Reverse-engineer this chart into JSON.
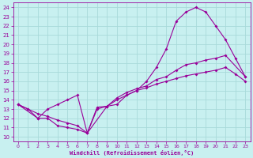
{
  "xlabel": "Windchill (Refroidissement éolien,°C)",
  "bg_color": "#c8f0f0",
  "grid_color": "#a8dada",
  "line_color": "#990099",
  "xlim": [
    -0.5,
    23.5
  ],
  "ylim": [
    9.5,
    24.5
  ],
  "xticks": [
    0,
    1,
    2,
    3,
    4,
    5,
    6,
    7,
    8,
    9,
    10,
    11,
    12,
    13,
    14,
    15,
    16,
    17,
    18,
    19,
    20,
    21,
    22,
    23
  ],
  "yticks": [
    10,
    11,
    12,
    13,
    14,
    15,
    16,
    17,
    18,
    19,
    20,
    21,
    22,
    23,
    24
  ],
  "line1_x": [
    0,
    1,
    2,
    3,
    4,
    5,
    6,
    7,
    8,
    9,
    10,
    11,
    12,
    13,
    14,
    15,
    16,
    17,
    18,
    19,
    20,
    21,
    22,
    23
  ],
  "line1_y": [
    13.5,
    13.0,
    12.0,
    12.0,
    11.2,
    11.0,
    10.8,
    10.4,
    13.2,
    13.3,
    13.5,
    14.5,
    15.0,
    16.0,
    17.5,
    19.5,
    22.5,
    23.5,
    24.0,
    23.5,
    22.0,
    20.5,
    18.5,
    16.5
  ],
  "line2_x": [
    0,
    2,
    3,
    4,
    5,
    6,
    7,
    9,
    10,
    11,
    12,
    13,
    14,
    15,
    16,
    17,
    18,
    19,
    20,
    21,
    23
  ],
  "line2_y": [
    13.5,
    12.0,
    13.0,
    13.5,
    14.0,
    14.5,
    10.4,
    13.3,
    14.2,
    14.8,
    15.2,
    15.5,
    16.2,
    16.5,
    17.2,
    17.8,
    18.0,
    18.3,
    18.5,
    18.8,
    16.5
  ],
  "line3_x": [
    0,
    1,
    2,
    3,
    4,
    5,
    6,
    7,
    8,
    9,
    10,
    11,
    12,
    13,
    14,
    15,
    16,
    17,
    18,
    19,
    20,
    21,
    22,
    23
  ],
  "line3_y": [
    13.5,
    13.0,
    12.5,
    12.2,
    11.8,
    11.5,
    11.2,
    10.4,
    13.0,
    13.3,
    14.0,
    14.5,
    15.0,
    15.3,
    15.7,
    16.0,
    16.3,
    16.6,
    16.8,
    17.0,
    17.2,
    17.5,
    16.8,
    16.0
  ]
}
